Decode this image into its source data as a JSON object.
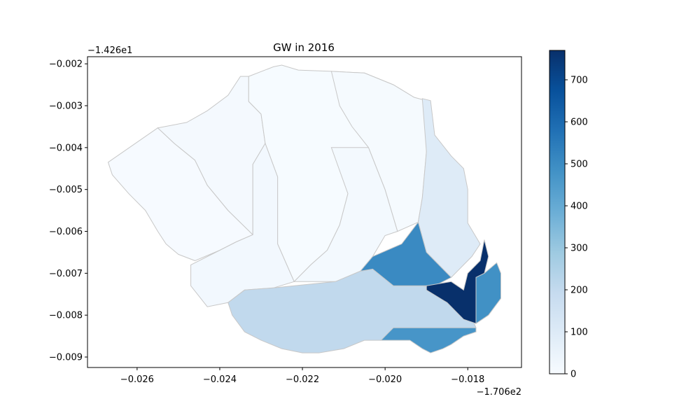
{
  "chart_data": {
    "type": "choropleth",
    "title": "GW in 2016",
    "x_offset_label": "−1.706e2",
    "y_offset_label": "−1.426e1",
    "xlim": [
      -0.0272,
      -0.0167
    ],
    "ylim": [
      -0.00925,
      -0.00183
    ],
    "x_ticks": [
      -0.026,
      -0.024,
      -0.022,
      -0.02,
      -0.018
    ],
    "x_tick_labels": [
      "−0.026",
      "−0.024",
      "−0.022",
      "−0.020",
      "−0.018"
    ],
    "y_ticks": [
      -0.002,
      -0.003,
      -0.004,
      -0.005,
      -0.006,
      -0.007,
      -0.008,
      -0.009
    ],
    "y_tick_labels": [
      "−0.002",
      "−0.003",
      "−0.004",
      "−0.005",
      "−0.006",
      "−0.007",
      "−0.008",
      "−0.009"
    ],
    "colormap": "Blues",
    "colorbar": {
      "min": 0,
      "max": 770,
      "ticks": [
        0,
        100,
        200,
        300,
        400,
        500,
        600,
        700
      ],
      "tick_labels": [
        "0",
        "100",
        "200",
        "300",
        "400",
        "500",
        "600",
        "700"
      ]
    },
    "regions": [
      {
        "value": 5,
        "polygon": [
          [
            -0.0267,
            -0.00435
          ],
          [
            -0.0255,
            -0.00353
          ],
          [
            -0.0251,
            -0.0039
          ],
          [
            -0.0246,
            -0.0043
          ],
          [
            -0.0243,
            -0.0049
          ],
          [
            -0.0238,
            -0.0055
          ],
          [
            -0.0232,
            -0.00608
          ],
          [
            -0.0236,
            -0.00625
          ],
          [
            -0.024,
            -0.00645
          ],
          [
            -0.0246,
            -0.0067
          ],
          [
            -0.025,
            -0.00655
          ],
          [
            -0.0253,
            -0.0063
          ],
          [
            -0.0255,
            -0.006
          ],
          [
            -0.0258,
            -0.0055
          ],
          [
            -0.0262,
            -0.0051
          ],
          [
            -0.0266,
            -0.00465
          ]
        ]
      },
      {
        "value": 12,
        "polygon": [
          [
            -0.0255,
            -0.00353
          ],
          [
            -0.0248,
            -0.0034
          ],
          [
            -0.0243,
            -0.00312
          ],
          [
            -0.0238,
            -0.00275
          ],
          [
            -0.0235,
            -0.0023
          ],
          [
            -0.0233,
            -0.0023
          ],
          [
            -0.0233,
            -0.0029
          ],
          [
            -0.023,
            -0.0032
          ],
          [
            -0.0229,
            -0.0039
          ],
          [
            -0.0232,
            -0.0044
          ],
          [
            -0.0232,
            -0.0058
          ],
          [
            -0.0232,
            -0.00608
          ],
          [
            -0.0238,
            -0.0055
          ],
          [
            -0.0243,
            -0.0049
          ],
          [
            -0.0246,
            -0.0043
          ],
          [
            -0.0251,
            -0.0039
          ]
        ]
      },
      {
        "value": 3,
        "polygon": [
          [
            -0.0233,
            -0.0023
          ],
          [
            -0.0227,
            -0.00207
          ],
          [
            -0.0225,
            -0.00203
          ],
          [
            -0.0221,
            -0.00215
          ],
          [
            -0.0213,
            -0.00218
          ],
          [
            -0.0205,
            -0.00222
          ],
          [
            -0.0198,
            -0.0025
          ],
          [
            -0.0193,
            -0.0028
          ],
          [
            -0.0192,
            -0.00288
          ],
          [
            -0.0204,
            -0.004
          ],
          [
            -0.0208,
            -0.0045
          ],
          [
            -0.0209,
            -0.0051
          ],
          [
            -0.0211,
            -0.00585
          ],
          [
            -0.0214,
            -0.00645
          ],
          [
            -0.0218,
            -0.0068
          ],
          [
            -0.0222,
            -0.0072
          ],
          [
            -0.0226,
            -0.0063
          ],
          [
            -0.0226,
            -0.0047
          ],
          [
            -0.0229,
            -0.0039
          ],
          [
            -0.023,
            -0.0032
          ],
          [
            -0.0233,
            -0.0029
          ]
        ]
      },
      {
        "value": 18,
        "polygon": [
          [
            -0.0229,
            -0.0039
          ],
          [
            -0.0226,
            -0.0047
          ],
          [
            -0.0226,
            -0.0063
          ],
          [
            -0.0222,
            -0.0072
          ],
          [
            -0.0227,
            -0.00735
          ],
          [
            -0.0234,
            -0.0074
          ],
          [
            -0.0238,
            -0.0077
          ],
          [
            -0.0243,
            -0.0078
          ],
          [
            -0.0247,
            -0.0073
          ],
          [
            -0.0247,
            -0.0068
          ],
          [
            -0.024,
            -0.00645
          ],
          [
            -0.0236,
            -0.00625
          ],
          [
            -0.0232,
            -0.00608
          ],
          [
            -0.0232,
            -0.0058
          ],
          [
            -0.0232,
            -0.0044
          ]
        ]
      },
      {
        "value": 15,
        "polygon": [
          [
            -0.0213,
            -0.004
          ],
          [
            -0.0204,
            -0.004
          ],
          [
            -0.02,
            -0.005
          ],
          [
            -0.0197,
            -0.006
          ],
          [
            -0.02,
            -0.0061
          ],
          [
            -0.0203,
            -0.0066
          ],
          [
            -0.0206,
            -0.00695
          ],
          [
            -0.0212,
            -0.0072
          ],
          [
            -0.0222,
            -0.0072
          ],
          [
            -0.0218,
            -0.0068
          ],
          [
            -0.0214,
            -0.00645
          ],
          [
            -0.0211,
            -0.00585
          ],
          [
            -0.0209,
            -0.0051
          ]
        ]
      },
      {
        "value": 8,
        "polygon": [
          [
            -0.0213,
            -0.00218
          ],
          [
            -0.0205,
            -0.00222
          ],
          [
            -0.0198,
            -0.0025
          ],
          [
            -0.0193,
            -0.0028
          ],
          [
            -0.019,
            -0.00288
          ],
          [
            -0.019,
            -0.0041
          ],
          [
            -0.0191,
            -0.0052
          ],
          [
            -0.0192,
            -0.00578
          ],
          [
            -0.0197,
            -0.006
          ],
          [
            -0.02,
            -0.005
          ],
          [
            -0.0204,
            -0.004
          ],
          [
            -0.0208,
            -0.0035
          ],
          [
            -0.0211,
            -0.003
          ]
        ]
      },
      {
        "value": 95,
        "polygon": [
          [
            -0.0191,
            -0.00283
          ],
          [
            -0.0189,
            -0.00288
          ],
          [
            -0.0188,
            -0.0037
          ],
          [
            -0.0184,
            -0.0042
          ],
          [
            -0.0181,
            -0.0045
          ],
          [
            -0.018,
            -0.005
          ],
          [
            -0.018,
            -0.0058
          ],
          [
            -0.0177,
            -0.0063
          ],
          [
            -0.0179,
            -0.0066
          ],
          [
            -0.0184,
            -0.0071
          ],
          [
            -0.019,
            -0.0065
          ],
          [
            -0.0192,
            -0.00578
          ],
          [
            -0.0191,
            -0.0052
          ],
          [
            -0.019,
            -0.0041
          ]
        ]
      },
      {
        "value": 205,
        "polygon": [
          [
            -0.0238,
            -0.0077
          ],
          [
            -0.0234,
            -0.0074
          ],
          [
            -0.0227,
            -0.00735
          ],
          [
            -0.0212,
            -0.0072
          ],
          [
            -0.0206,
            -0.00695
          ],
          [
            -0.0203,
            -0.0069
          ],
          [
            -0.0198,
            -0.0073
          ],
          [
            -0.0191,
            -0.0073
          ],
          [
            -0.0186,
            -0.0074
          ],
          [
            -0.0181,
            -0.0076
          ],
          [
            -0.0178,
            -0.0083
          ],
          [
            -0.0198,
            -0.0084
          ],
          [
            -0.0201,
            -0.0086
          ],
          [
            -0.0205,
            -0.0086
          ],
          [
            -0.021,
            -0.0088
          ],
          [
            -0.0216,
            -0.0089
          ],
          [
            -0.022,
            -0.0089
          ],
          [
            -0.0225,
            -0.0088
          ],
          [
            -0.023,
            -0.0086
          ],
          [
            -0.0234,
            -0.0084
          ],
          [
            -0.0237,
            -0.008
          ]
        ]
      },
      {
        "value": 505,
        "polygon": [
          [
            -0.0206,
            -0.00695
          ],
          [
            -0.0203,
            -0.0066
          ],
          [
            -0.0196,
            -0.0063
          ],
          [
            -0.0192,
            -0.00578
          ],
          [
            -0.019,
            -0.0065
          ],
          [
            -0.0184,
            -0.0071
          ],
          [
            -0.0188,
            -0.0073
          ],
          [
            -0.0191,
            -0.0073
          ],
          [
            -0.0198,
            -0.0073
          ],
          [
            -0.0203,
            -0.0069
          ]
        ]
      },
      {
        "value": 770,
        "polygon": [
          [
            -0.019,
            -0.0073
          ],
          [
            -0.0184,
            -0.0072
          ],
          [
            -0.0181,
            -0.0074
          ],
          [
            -0.018,
            -0.007
          ],
          [
            -0.0177,
            -0.0067
          ],
          [
            -0.0176,
            -0.0062
          ],
          [
            -0.0175,
            -0.0066
          ],
          [
            -0.0176,
            -0.007
          ],
          [
            -0.0178,
            -0.0071
          ],
          [
            -0.0178,
            -0.0082
          ],
          [
            -0.0181,
            -0.0081
          ],
          [
            -0.0185,
            -0.0077
          ],
          [
            -0.019,
            -0.0074
          ]
        ]
      },
      {
        "value": 485,
        "polygon": [
          [
            -0.0178,
            -0.0071
          ],
          [
            -0.0176,
            -0.007
          ],
          [
            -0.0173,
            -0.00675
          ],
          [
            -0.0172,
            -0.007
          ],
          [
            -0.0172,
            -0.0076
          ],
          [
            -0.0175,
            -0.008
          ],
          [
            -0.0178,
            -0.0082
          ]
        ]
      },
      {
        "value": 470,
        "polygon": [
          [
            -0.0198,
            -0.0083
          ],
          [
            -0.018,
            -0.0083
          ],
          [
            -0.0178,
            -0.0083
          ],
          [
            -0.0178,
            -0.0084
          ],
          [
            -0.0181,
            -0.0085
          ],
          [
            -0.0184,
            -0.0087
          ],
          [
            -0.0186,
            -0.0088
          ],
          [
            -0.0189,
            -0.0089
          ],
          [
            -0.0191,
            -0.0088
          ],
          [
            -0.0194,
            -0.0086
          ],
          [
            -0.0199,
            -0.0086
          ],
          [
            -0.0201,
            -0.0086
          ]
        ]
      }
    ]
  }
}
